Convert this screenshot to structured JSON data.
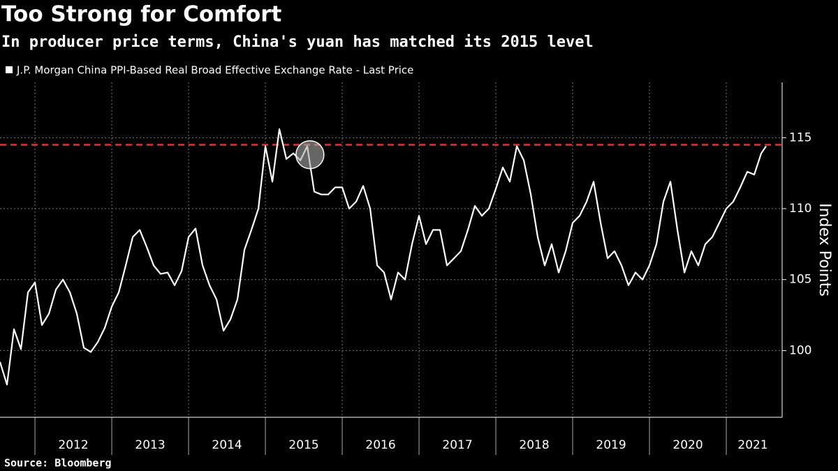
{
  "chart_data": {
    "type": "line",
    "title": "Too Strong for Comfort",
    "subtitle": "In producer price terms, China's yuan has matched its 2015 level",
    "y_axis_label": "Index Points",
    "source": "Source: Bloomberg",
    "x": [
      2011.545,
      2011.636,
      2011.727,
      2011.818,
      2011.909,
      2012.0,
      2012.091,
      2012.182,
      2012.273,
      2012.364,
      2012.455,
      2012.545,
      2012.636,
      2012.727,
      2012.818,
      2012.909,
      2013.0,
      2013.091,
      2013.182,
      2013.273,
      2013.364,
      2013.455,
      2013.545,
      2013.636,
      2013.727,
      2013.818,
      2013.909,
      2014.0,
      2014.091,
      2014.182,
      2014.273,
      2014.364,
      2014.455,
      2014.545,
      2014.636,
      2014.727,
      2014.818,
      2014.909,
      2015.0,
      2015.091,
      2015.182,
      2015.273,
      2015.364,
      2015.455,
      2015.545,
      2015.636,
      2015.727,
      2015.818,
      2015.909,
      2016.0,
      2016.091,
      2016.182,
      2016.273,
      2016.364,
      2016.455,
      2016.545,
      2016.636,
      2016.727,
      2016.818,
      2016.909,
      2017.0,
      2017.091,
      2017.182,
      2017.273,
      2017.364,
      2017.455,
      2017.545,
      2017.636,
      2017.727,
      2017.818,
      2017.909,
      2018.0,
      2018.091,
      2018.182,
      2018.273,
      2018.364,
      2018.455,
      2018.545,
      2018.636,
      2018.727,
      2018.818,
      2018.909,
      2019.0,
      2019.091,
      2019.182,
      2019.273,
      2019.364,
      2019.455,
      2019.545,
      2019.636,
      2019.727,
      2019.818,
      2019.909,
      2020.0,
      2020.091,
      2020.182,
      2020.273,
      2020.364,
      2020.455,
      2020.545,
      2020.636,
      2020.727,
      2020.818,
      2020.909,
      2021.0,
      2021.091,
      2021.182,
      2021.273,
      2021.364,
      2021.455,
      2021.518
    ],
    "series": [
      {
        "name": "J.P. Morgan China PPI-Based Real Broad Effective Exchange Rate - Last Price",
        "color": "#ffffff",
        "values": [
          99.2,
          97.6,
          101.5,
          100.1,
          104.1,
          104.8,
          101.8,
          102.6,
          104.3,
          105.0,
          104.1,
          102.6,
          100.2,
          99.9,
          100.6,
          101.6,
          103.1,
          104.1,
          106.0,
          108.0,
          108.5,
          107.3,
          106.0,
          105.4,
          105.5,
          104.6,
          105.6,
          108.0,
          108.6,
          106.0,
          104.6,
          103.6,
          101.4,
          102.2,
          103.6,
          107.1,
          108.5,
          110.0,
          114.4,
          111.9,
          115.6,
          113.5,
          113.9,
          113.4,
          114.4,
          111.2,
          111.0,
          111.0,
          111.5,
          111.5,
          110.0,
          110.5,
          111.6,
          110.0,
          106.0,
          105.5,
          103.6,
          105.5,
          105.0,
          107.5,
          109.5,
          107.5,
          108.5,
          108.5,
          106.0,
          106.5,
          107.0,
          108.5,
          110.2,
          109.5,
          110.0,
          111.4,
          112.9,
          111.9,
          114.4,
          113.4,
          111.0,
          108.0,
          106.0,
          107.5,
          105.5,
          107.0,
          109.0,
          109.5,
          110.5,
          111.9,
          109.0,
          106.5,
          107.0,
          106.0,
          104.6,
          105.5,
          105.0,
          106.0,
          107.5,
          110.5,
          111.9,
          108.5,
          105.5,
          107.0,
          106.0,
          107.5,
          108.0,
          109.0,
          110.0,
          110.5,
          111.5,
          112.6,
          112.4,
          113.9,
          114.4
        ]
      }
    ],
    "reference_line": {
      "value": 114.5,
      "color": "#e8302a"
    },
    "highlight": {
      "x": 2015.58,
      "y": 113.8
    },
    "xlim": [
      2011.545,
      2021.727
    ],
    "xticks": [
      2012,
      2013,
      2014,
      2015,
      2016,
      2017,
      2018,
      2019,
      2020,
      2021
    ],
    "ylim": [
      95.3,
      118.9
    ],
    "yticks": [
      100,
      105,
      110,
      115
    ],
    "grid": true
  }
}
